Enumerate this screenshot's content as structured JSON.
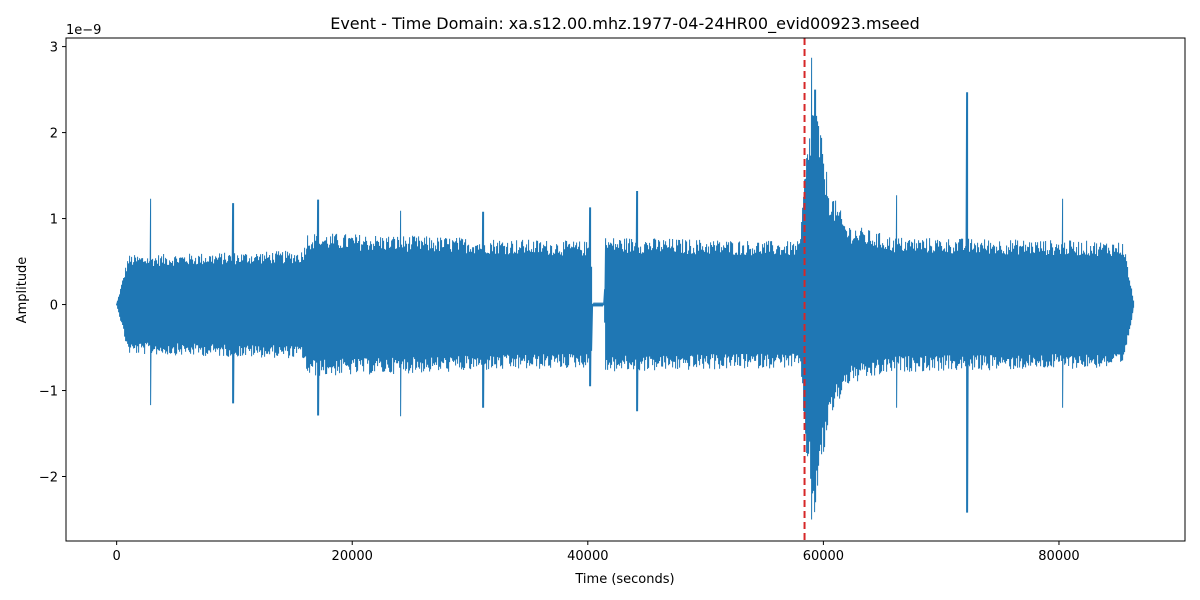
{
  "chart_data": {
    "type": "line",
    "title": "Event - Time Domain: xa.s12.00.mhz.1977-04-24HR00_evid00923.mseed",
    "xlabel": "Time (seconds)",
    "ylabel": "Amplitude",
    "y_offset_text": "1e−9",
    "xlim": [
      -4300,
      90700
    ],
    "ylim": [
      -2.75,
      3.1
    ],
    "x_ticks": [
      0,
      20000,
      40000,
      60000,
      80000
    ],
    "x_tick_labels": [
      "0",
      "20000",
      "40000",
      "60000",
      "80000"
    ],
    "y_ticks": [
      -2,
      -1,
      0,
      1,
      2,
      3
    ],
    "y_tick_labels": [
      "−2",
      "−1",
      "0",
      "1",
      "2",
      "3"
    ],
    "grid": false,
    "series": [
      {
        "color": "#1f77b4",
        "x_range": [
          0,
          86400
        ],
        "noise_envelope": [
          {
            "x": 0,
            "amp": 0.0
          },
          {
            "x": 1000,
            "amp": 0.55
          },
          {
            "x": 15800,
            "amp": 0.6
          },
          {
            "x": 16200,
            "amp": 0.8
          },
          {
            "x": 40300,
            "amp": 0.7
          },
          {
            "x": 40400,
            "amp": 0.0
          },
          {
            "x": 41400,
            "amp": 0.0
          },
          {
            "x": 41500,
            "amp": 0.75
          },
          {
            "x": 58000,
            "amp": 0.7
          },
          {
            "x": 58500,
            "amp": 1.6
          },
          {
            "x": 59200,
            "amp": 2.4
          },
          {
            "x": 60500,
            "amp": 1.3
          },
          {
            "x": 62000,
            "amp": 0.9
          },
          {
            "x": 66000,
            "amp": 0.75
          },
          {
            "x": 85500,
            "amp": 0.7
          },
          {
            "x": 86400,
            "amp": 0.0
          }
        ],
        "spikes": [
          {
            "x": 2900,
            "max": 1.23,
            "min": -1.17
          },
          {
            "x": 9900,
            "max": 1.18,
            "min": -1.15
          },
          {
            "x": 17100,
            "max": 1.22,
            "min": -1.29
          },
          {
            "x": 24100,
            "max": 1.09,
            "min": -1.3
          },
          {
            "x": 31100,
            "max": 1.08,
            "min": -1.2
          },
          {
            "x": 40200,
            "max": 1.13,
            "min": -0.95
          },
          {
            "x": 44200,
            "max": 1.32,
            "min": -1.24
          },
          {
            "x": 59000,
            "max": 2.87,
            "min": -2.5
          },
          {
            "x": 59300,
            "max": 2.5,
            "min": -2.3
          },
          {
            "x": 66200,
            "max": 1.27,
            "min": -1.2
          },
          {
            "x": 72200,
            "max": 2.47,
            "min": -2.42
          },
          {
            "x": 80300,
            "max": 1.23,
            "min": -1.2
          }
        ]
      }
    ],
    "annotations": [
      {
        "type": "vline",
        "x": 58400,
        "color": "#d62728",
        "style": "dashed"
      }
    ]
  }
}
